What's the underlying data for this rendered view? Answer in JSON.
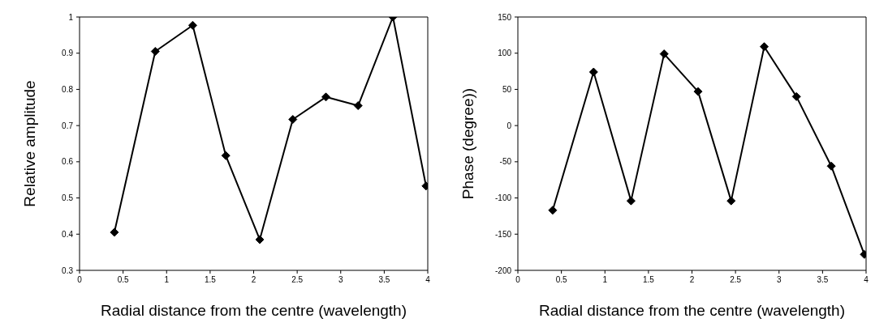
{
  "chart_data": [
    {
      "type": "line",
      "xlabel": "Radial distance from the centre (wavelength)",
      "ylabel": "Relative amplitude",
      "x": [
        0.4,
        0.87,
        1.3,
        1.68,
        2.07,
        2.45,
        2.83,
        3.2,
        3.6,
        3.98
      ],
      "series": [
        {
          "color": "#000000",
          "values": [
            0.405,
            0.905,
            0.977,
            0.617,
            0.385,
            0.717,
            0.779,
            0.755,
            1.0,
            0.533
          ]
        }
      ],
      "xlim": [
        0,
        4
      ],
      "xticks": [
        0,
        0.5,
        1,
        1.5,
        2,
        2.5,
        3,
        3.5,
        4
      ],
      "ylim": [
        0.3,
        1
      ],
      "yticks": [
        0.3,
        0.4,
        0.5,
        0.6,
        0.7,
        0.8,
        0.9,
        1
      ],
      "grid": false,
      "legend": false,
      "marker": "diamond",
      "line_style": "solid"
    },
    {
      "type": "line",
      "xlabel": "Radial distance from the centre (wavelength)",
      "ylabel": "Phase (degree))",
      "x": [
        0.4,
        0.87,
        1.3,
        1.68,
        2.07,
        2.45,
        2.83,
        3.2,
        3.6,
        3.98
      ],
      "series": [
        {
          "color": "#000000",
          "values": [
            -117,
            74,
            -104,
            99,
            47,
            -104,
            109,
            40,
            -56,
            -178
          ]
        }
      ],
      "xlim": [
        0,
        4
      ],
      "xticks": [
        0,
        0.5,
        1,
        1.5,
        2,
        2.5,
        3,
        3.5,
        4
      ],
      "ylim": [
        -200,
        150
      ],
      "yticks": [
        -200,
        -150,
        -100,
        -50,
        0,
        50,
        100,
        150
      ],
      "grid": false,
      "legend": false,
      "marker": "diamond",
      "line_style": "solid"
    }
  ]
}
